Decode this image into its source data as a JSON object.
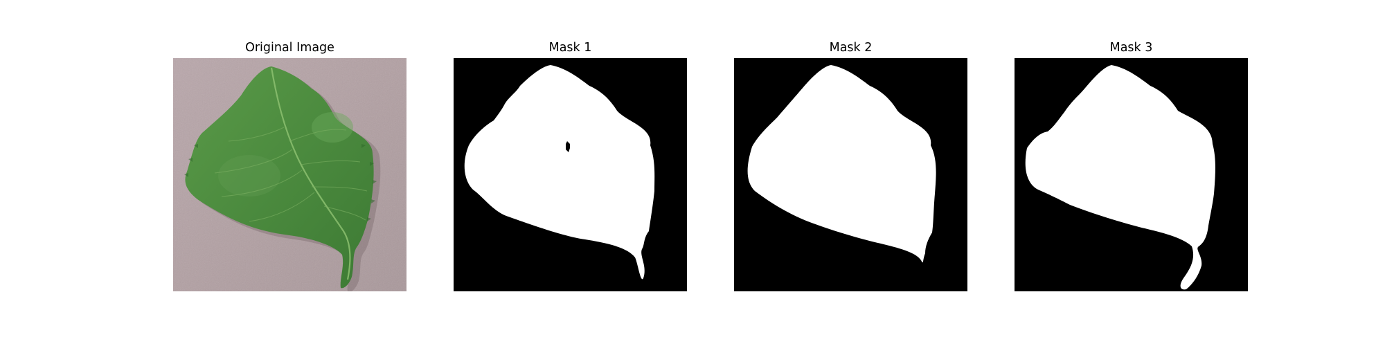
{
  "figure": {
    "panels": [
      {
        "title": "Original Image",
        "content": "leaf-photo"
      },
      {
        "title": "Mask 1",
        "content": "segmentation-mask"
      },
      {
        "title": "Mask 2",
        "content": "segmentation-mask"
      },
      {
        "title": "Mask 3",
        "content": "segmentation-mask"
      }
    ]
  },
  "colors": {
    "background": "#ffffff",
    "mask_foreground": "#ffffff",
    "mask_background": "#000000",
    "leaf_green": "#4e8d40",
    "leaf_dark": "#2f6a2a",
    "surface": "#b6a3a6"
  }
}
